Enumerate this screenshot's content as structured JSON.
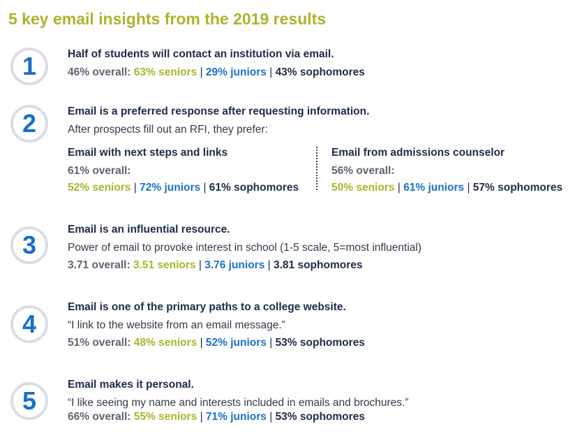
{
  "title": "5 key email insights from the 2019 results",
  "colors": {
    "title": "#aab52c",
    "seniors": "#aab52c",
    "juniors": "#1a72c9",
    "sophomores": "#1e2b48",
    "overall": "#5d6571",
    "number": "#1a6fc7",
    "ring": "#d8dde6"
  },
  "insights": [
    {
      "number": "1",
      "heading": "Half of students will contact an institution via email.",
      "overall": "46% overall:",
      "seniors": "63% seniors",
      "juniors": "29% juniors",
      "sophomores": "43% sophomores"
    },
    {
      "number": "2",
      "heading": "Email is a preferred response after requesting information.",
      "text": "After prospects fill out an RFI, they prefer:",
      "columns": [
        {
          "heading": "Email with next steps and links",
          "overall": "61% overall:",
          "seniors": "52% seniors",
          "juniors": "72% juniors",
          "sophomores": "61% sophomores"
        },
        {
          "heading": "Email from admissions counselor",
          "overall": "56% overall:",
          "seniors": "50% seniors",
          "juniors": "61% juniors",
          "sophomores": "57% sophomores"
        }
      ]
    },
    {
      "number": "3",
      "heading": "Email is an influential resource.",
      "text": "Power of email to provoke interest in school (1-5 scale, 5=most influential)",
      "overall": "3.71 overall:",
      "seniors": "3.51 seniors",
      "juniors": "3.76 juniors",
      "sophomores": "3.81 sophomores"
    },
    {
      "number": "4",
      "heading": "Email is one of the primary paths to a college website.",
      "text": "“I link to the website from an email message.”",
      "overall": "51% overall:",
      "seniors": "48% seniors",
      "juniors": "52% juniors",
      "sophomores": "53% sophomores"
    },
    {
      "number": "5",
      "heading": "Email makes it personal.",
      "text": "“I like seeing my name and interests included in emails and brochures.”",
      "overall": "66% overall:",
      "seniors": "55% seniors",
      "juniors": "71% juniors",
      "sophomores": "53% sophomores"
    }
  ],
  "separator": "|"
}
